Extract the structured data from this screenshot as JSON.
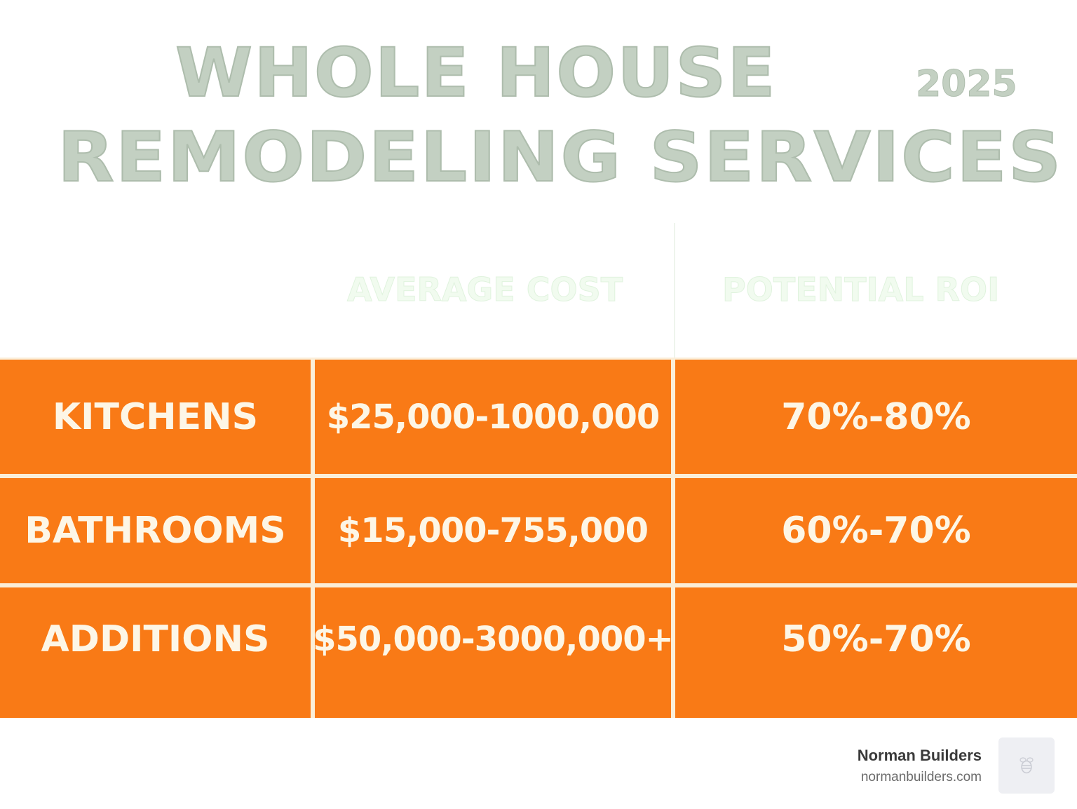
{
  "title": {
    "line1": "WHOLE HOUSE",
    "line2": "REMODELING SERVICES",
    "year": "2025"
  },
  "table": {
    "headers": [
      "",
      "AVERAGE COST",
      "POTENTIAL ROI"
    ],
    "rows": [
      {
        "label": "KITCHENS",
        "cost": "$25,000-1000,000",
        "roi": "70%-80%"
      },
      {
        "label": "BATHROOMS",
        "cost": "$15,000-755,000",
        "roi": "60%-70%"
      },
      {
        "label": "ADDITIONS",
        "cost": "$50,000-3000,000+",
        "roi": "50%-70%"
      }
    ]
  },
  "brand": {
    "name": "Norman Builders",
    "url": "normanbuilders.com",
    "logo_icon": "bee-icon"
  },
  "colors": {
    "cell_background": "#f97a16",
    "cell_text": "#fdf6e6",
    "grid_lines": "#fbeed8",
    "title_text": "#c3d0c2",
    "header_text": "#f1fbef"
  }
}
